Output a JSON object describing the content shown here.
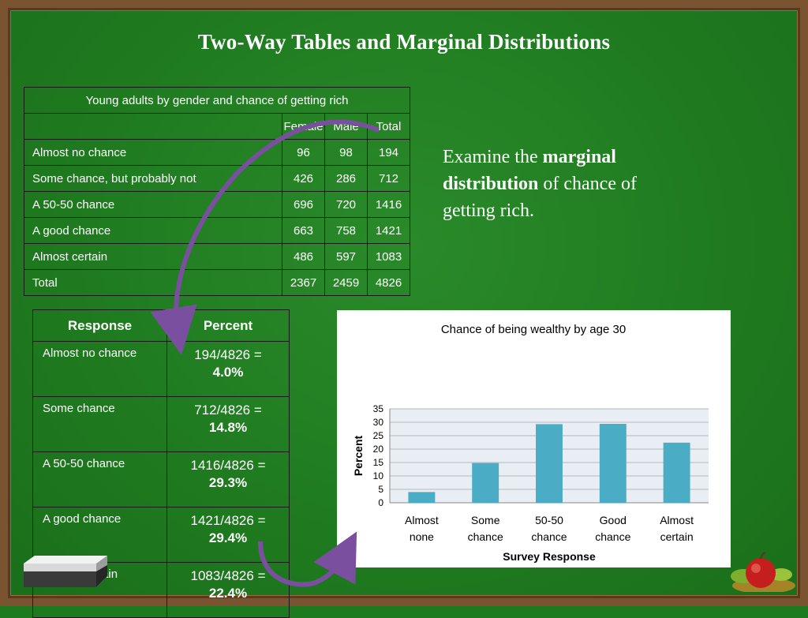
{
  "title": "Two-Way Tables and Marginal Distributions",
  "two_way_table": {
    "caption": "Young adults by gender and chance of getting rich",
    "headers": [
      "",
      "Female",
      "Male",
      "Total"
    ],
    "rows": [
      [
        "Almost no chance",
        "96",
        "98",
        "194"
      ],
      [
        "Some chance, but probably not",
        "426",
        "286",
        "712"
      ],
      [
        "A 50-50 chance",
        "696",
        "720",
        "1416"
      ],
      [
        "A good chance",
        "663",
        "758",
        "1421"
      ],
      [
        "Almost certain",
        "486",
        "597",
        "1083"
      ],
      [
        "Total",
        "2367",
        "2459",
        "4826"
      ]
    ]
  },
  "marginal_table": {
    "headers": [
      "Response",
      "Percent"
    ],
    "rows": [
      {
        "label": "Almost no chance",
        "fraction": "194/4826 =",
        "percent": "4.0%"
      },
      {
        "label": "Some chance",
        "fraction": "712/4826 =",
        "percent": "14.8%"
      },
      {
        "label": "A 50-50 chance",
        "fraction": "1416/4826 =",
        "percent": "29.3%"
      },
      {
        "label": "A good chance",
        "fraction": "1421/4826 =",
        "percent": "29.4%"
      },
      {
        "label": "Almost certain",
        "fraction": "1083/4826 =",
        "percent": "22.4%"
      }
    ]
  },
  "examine_text": {
    "part1": "Examine the ",
    "bold": "marginal distribution",
    "part2": " of chance of getting rich."
  },
  "chart_data": {
    "type": "bar",
    "title": "Chance of being wealthy by age 30",
    "xlabel": "Survey Response",
    "ylabel": "Percent",
    "categories": [
      [
        "Almost",
        "none"
      ],
      [
        "Some",
        "chance"
      ],
      [
        "50-50",
        "chance"
      ],
      [
        "Good",
        "chance"
      ],
      [
        "Almost",
        "certain"
      ]
    ],
    "values": [
      4.0,
      14.8,
      29.3,
      29.4,
      22.4
    ],
    "ylim": [
      0,
      35
    ],
    "yticks": [
      0,
      5,
      10,
      15,
      20,
      25,
      30,
      35
    ],
    "grid": true,
    "bar_color": "#4bacc6"
  },
  "colors": {
    "board": "#1f7a1f",
    "frame": "#7a5330",
    "arrow": "#7b4fa0"
  }
}
